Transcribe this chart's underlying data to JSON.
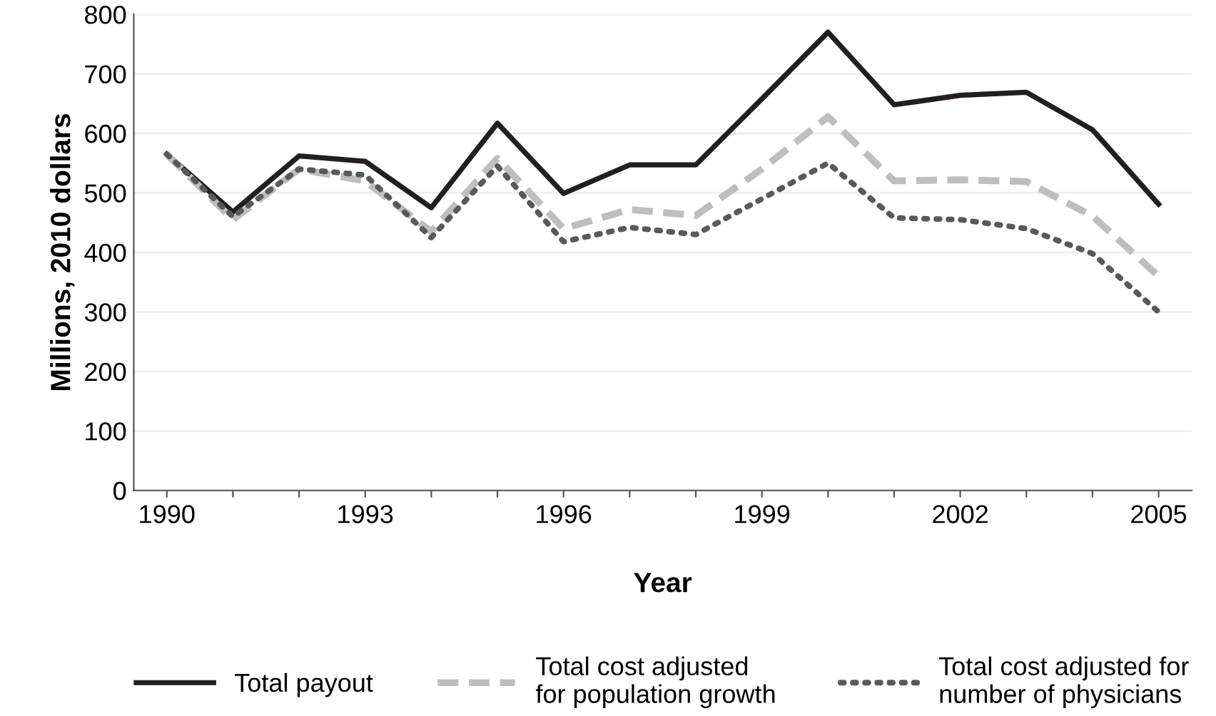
{
  "chart_data": {
    "type": "line",
    "xlabel": "Year",
    "ylabel": "Millions, 2010 dollars",
    "x": [
      1990,
      1991,
      1992,
      1993,
      1994,
      1995,
      1996,
      1997,
      1998,
      1999,
      2000,
      2001,
      2002,
      2003,
      2004,
      2005
    ],
    "series": [
      {
        "name": "Total payout",
        "color": "#231f20",
        "line_style": "solid",
        "values": [
          565,
          468,
          562,
          553,
          475,
          617,
          499,
          547,
          547,
          658,
          770,
          648,
          664,
          669,
          606,
          481
        ]
      },
      {
        "name": "Total cost adjusted\nfor population growth",
        "color": "#bcbec0",
        "line_style": "dashed",
        "values": [
          565,
          455,
          540,
          520,
          435,
          558,
          440,
          472,
          462,
          540,
          628,
          520,
          522,
          519,
          461,
          360
        ]
      },
      {
        "name": "Total cost adjusted for\nnumber of physicians",
        "color": "#58595b",
        "line_style": "dotted",
        "values": [
          565,
          460,
          540,
          530,
          425,
          545,
          418,
          442,
          430,
          490,
          550,
          458,
          455,
          440,
          398,
          300
        ]
      }
    ],
    "xlim": [
      1989.5,
      2005.5
    ],
    "ylim": [
      0,
      800
    ],
    "xticks": [
      1990,
      {
        "value": 1991,
        "label": null
      },
      {
        "value": 1992,
        "label": null
      },
      1993,
      {
        "value": 1994,
        "label": null
      },
      {
        "value": 1995,
        "label": null
      },
      1996,
      {
        "value": 1997,
        "label": null
      },
      {
        "value": 1998,
        "label": null
      },
      1999,
      {
        "value": 2000,
        "label": null
      },
      {
        "value": 2001,
        "label": null
      },
      2002,
      {
        "value": 2003,
        "label": null
      },
      {
        "value": 2004,
        "label": null
      },
      2005
    ],
    "yticks": [
      0,
      100,
      200,
      300,
      400,
      500,
      600,
      700,
      800
    ],
    "grid": "y",
    "legend": "bottom"
  }
}
